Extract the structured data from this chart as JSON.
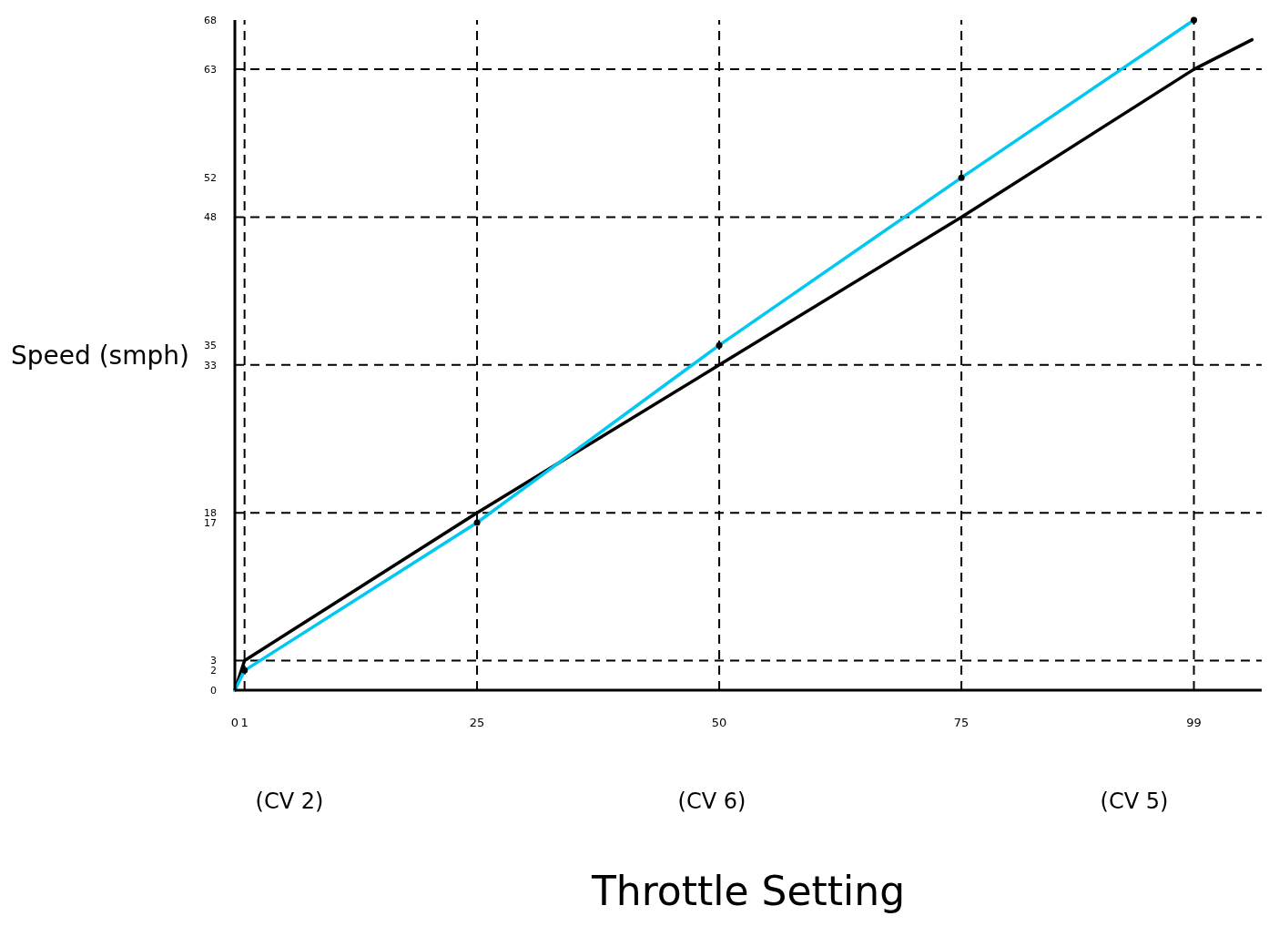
{
  "chart_data": {
    "type": "line",
    "xlabel": "Throttle Setting",
    "ylabel": "Speed (smph)",
    "xlim": [
      0,
      106
    ],
    "ylim": [
      0,
      68
    ],
    "xticks": [
      0,
      1,
      25,
      50,
      75,
      99
    ],
    "yticks": [
      0,
      2,
      3,
      17,
      18,
      33,
      35,
      48,
      52,
      63,
      68
    ],
    "grid": false,
    "line_style": "solid",
    "series": [
      {
        "color": "#000000",
        "x": [
          0,
          1,
          25,
          50,
          75,
          99,
          105
        ],
        "values": [
          0,
          3,
          18,
          33,
          48,
          63,
          66
        ],
        "marker": "none"
      },
      {
        "color": "#00c8f0",
        "x": [
          0,
          1,
          25,
          50,
          75,
          99
        ],
        "values": [
          0,
          2,
          17,
          35,
          52,
          68
        ],
        "marker": "circle"
      }
    ],
    "ref_lines": [
      {
        "axis": "y",
        "value": 3,
        "line_style": "dashed"
      },
      {
        "axis": "y",
        "value": 18,
        "line_style": "dashed"
      },
      {
        "axis": "y",
        "value": 33,
        "line_style": "dashed"
      },
      {
        "axis": "y",
        "value": 48,
        "line_style": "dashed"
      },
      {
        "axis": "y",
        "value": 63,
        "line_style": "dashed"
      },
      {
        "axis": "x",
        "value": 1,
        "line_style": "dashed"
      },
      {
        "axis": "x",
        "value": 25,
        "line_style": "dashed"
      },
      {
        "axis": "x",
        "value": 50,
        "line_style": "dashed"
      },
      {
        "axis": "x",
        "value": 75,
        "line_style": "dashed"
      },
      {
        "axis": "x",
        "value": 99,
        "line_style": "dashed"
      }
    ],
    "annotations": [
      "(CV 2)",
      "(CV 6)",
      "(CV 5)"
    ]
  }
}
